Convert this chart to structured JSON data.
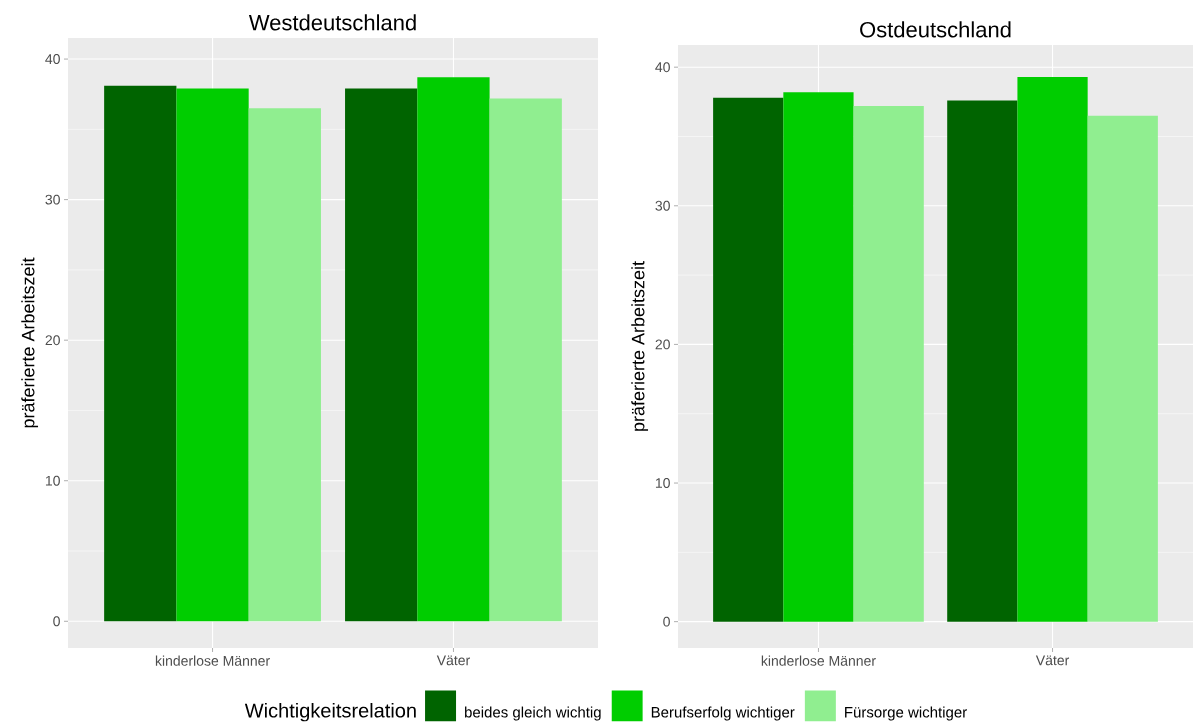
{
  "chart_data": [
    {
      "type": "bar",
      "title": "Westdeutschland",
      "ylabel": "präferierte Arbeitszeit",
      "legend_title": "Wichtigkeitsrelation",
      "legend": "bottom",
      "grid": true,
      "categories": [
        "kinderlose Männer",
        "Väter"
      ],
      "series": [
        {
          "name": "beides gleich wichtig",
          "color": "#006400",
          "values": [
            38.1,
            37.9
          ]
        },
        {
          "name": "Berufserfolg wichtiger",
          "color": "#00cd00",
          "values": [
            37.9,
            38.7
          ]
        },
        {
          "name": "Fürsorge wichtiger",
          "color": "#90ee90",
          "values": [
            36.5,
            37.2
          ]
        }
      ],
      "ylim": [
        -1.9,
        41.5
      ],
      "yticks": [
        0,
        10,
        20,
        30,
        40
      ]
    },
    {
      "type": "bar",
      "title": "Ostdeutschland",
      "ylabel": "präferierte Arbeitszeit",
      "grid": true,
      "categories": [
        "kinderlose Männer",
        "Väter"
      ],
      "series": [
        {
          "color": "#006400",
          "values": [
            37.8,
            37.6
          ]
        },
        {
          "color": "#00cd00",
          "values": [
            38.2,
            39.3
          ]
        },
        {
          "color": "#90ee90",
          "values": [
            37.2,
            36.5
          ]
        }
      ],
      "ylim": [
        -1.9,
        41.6
      ],
      "yticks": [
        0,
        10,
        20,
        30,
        40
      ]
    }
  ]
}
